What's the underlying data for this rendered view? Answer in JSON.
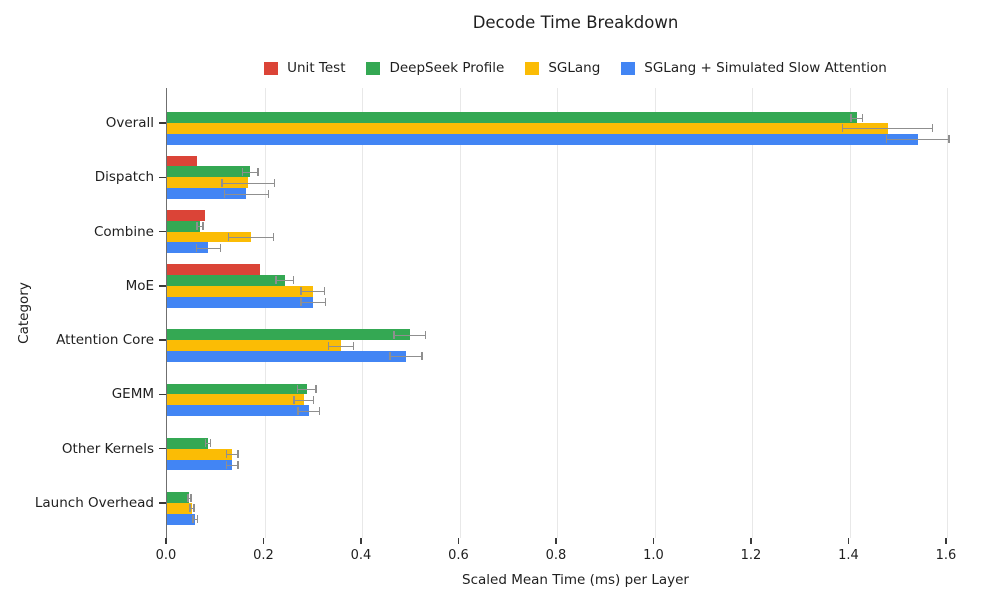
{
  "chart_data": {
    "type": "bar",
    "orientation": "horizontal",
    "title": "Decode Time Breakdown",
    "xlabel": "Scaled Mean Time (ms) per Layer",
    "ylabel": "Category",
    "categories": [
      "Overall",
      "Dispatch",
      "Combine",
      "MoE",
      "Attention Core",
      "GEMM",
      "Other Kernels",
      "Launch Overhead"
    ],
    "series": [
      {
        "name": "Unit Test",
        "color": "#DB4437",
        "values": [
          null,
          0.061,
          0.077,
          0.191,
          null,
          null,
          null,
          null
        ],
        "errors": [
          null,
          null,
          null,
          null,
          null,
          null,
          null,
          null
        ]
      },
      {
        "name": "DeepSeek Profile",
        "color": "#34A853",
        "values": [
          1.415,
          0.171,
          0.068,
          0.242,
          0.498,
          0.287,
          0.084,
          0.046
        ],
        "errors": [
          0.012,
          0.016,
          0.006,
          0.018,
          0.032,
          0.019,
          0.005,
          0.003
        ]
      },
      {
        "name": "SGLang",
        "color": "#FBBC05",
        "values": [
          1.478,
          0.167,
          0.172,
          0.299,
          0.357,
          0.281,
          0.134,
          0.051
        ],
        "errors": [
          0.092,
          0.054,
          0.046,
          0.024,
          0.026,
          0.02,
          0.012,
          0.004
        ]
      },
      {
        "name": "SGLang + Simulated Slow Attention",
        "color": "#4285F4",
        "values": [
          1.54,
          0.163,
          0.085,
          0.3,
          0.49,
          0.291,
          0.134,
          0.058
        ],
        "errors": [
          0.064,
          0.045,
          0.025,
          0.025,
          0.033,
          0.022,
          0.012,
          0.005
        ]
      }
    ],
    "xlim": [
      0,
      1.68
    ],
    "x_ticks": [
      0.0,
      0.2,
      0.4,
      0.6,
      0.8,
      1.0,
      1.2,
      1.4,
      1.6
    ],
    "x_tick_labels": [
      "0.0",
      "0.2",
      "0.4",
      "0.6",
      "0.8",
      "1.0",
      "1.2",
      "1.4",
      "1.6"
    ],
    "grid": "vertical-only",
    "legend_position": "top-center",
    "error_bar_color": "#8f8f8f",
    "spine_color": "#6f6f6f",
    "gridline_color": "#e8e8e8"
  }
}
